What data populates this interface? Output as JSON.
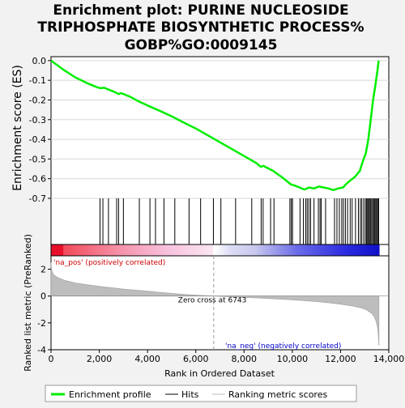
{
  "chart_data": {
    "type": "line",
    "title_lines": [
      "Enrichment plot: PURINE NUCLEOSIDE",
      "TRIPHOSPHATE BIOSYNTHETIC PROCESS%",
      "GOBP%GO:0009145"
    ],
    "xlabel": "Rank in Ordered Dataset",
    "es_panel": {
      "ylabel": "Enrichment score (ES)",
      "ylim": [
        -0.7,
        0.02
      ],
      "yticks": [
        0.0,
        -0.1,
        -0.2,
        -0.3,
        -0.4,
        -0.5,
        -0.6,
        -0.7
      ],
      "ytick_labels": [
        "0.0",
        "-0.1",
        "-0.2",
        "-0.3",
        "-0.4",
        "-0.5",
        "-0.6",
        "-0.7"
      ],
      "series_name": "Enrichment profile",
      "color": "#00ee00",
      "points": [
        [
          0,
          0.0
        ],
        [
          500,
          -0.045
        ],
        [
          1000,
          -0.085
        ],
        [
          1500,
          -0.115
        ],
        [
          1900,
          -0.135
        ],
        [
          2050,
          -0.14
        ],
        [
          2200,
          -0.138
        ],
        [
          2400,
          -0.148
        ],
        [
          2650,
          -0.16
        ],
        [
          2800,
          -0.17
        ],
        [
          2900,
          -0.165
        ],
        [
          3050,
          -0.172
        ],
        [
          3300,
          -0.185
        ],
        [
          3600,
          -0.205
        ],
        [
          4000,
          -0.228
        ],
        [
          4500,
          -0.255
        ],
        [
          5000,
          -0.283
        ],
        [
          5500,
          -0.315
        ],
        [
          6000,
          -0.345
        ],
        [
          6500,
          -0.38
        ],
        [
          7000,
          -0.415
        ],
        [
          7500,
          -0.45
        ],
        [
          8000,
          -0.485
        ],
        [
          8500,
          -0.52
        ],
        [
          8700,
          -0.54
        ],
        [
          8800,
          -0.535
        ],
        [
          9200,
          -0.56
        ],
        [
          9600,
          -0.595
        ],
        [
          9950,
          -0.63
        ],
        [
          10100,
          -0.635
        ],
        [
          10300,
          -0.645
        ],
        [
          10500,
          -0.655
        ],
        [
          10700,
          -0.645
        ],
        [
          10900,
          -0.65
        ],
        [
          11100,
          -0.64
        ],
        [
          11300,
          -0.645
        ],
        [
          11500,
          -0.65
        ],
        [
          11700,
          -0.658
        ],
        [
          11900,
          -0.65
        ],
        [
          12100,
          -0.645
        ],
        [
          12250,
          -0.625
        ],
        [
          12400,
          -0.61
        ],
        [
          12600,
          -0.59
        ],
        [
          12800,
          -0.56
        ],
        [
          12900,
          -0.52
        ],
        [
          13050,
          -0.47
        ],
        [
          13150,
          -0.4
        ],
        [
          13250,
          -0.3
        ],
        [
          13350,
          -0.2
        ],
        [
          13450,
          -0.12
        ],
        [
          13530,
          -0.05
        ],
        [
          13580,
          0.0
        ]
      ]
    },
    "hits": {
      "series_name": "Hits",
      "positions": [
        2030,
        2150,
        2380,
        2720,
        2800,
        3000,
        3660,
        4100,
        4330,
        4680,
        5130,
        5720,
        6200,
        6730,
        7040,
        7650,
        8320,
        8710,
        8790,
        9100,
        9240,
        9900,
        9960,
        10010,
        10320,
        10460,
        10560,
        10620,
        10690,
        10760,
        10900,
        11080,
        11150,
        11200,
        11380,
        11750,
        11850,
        11950,
        12050,
        12120,
        12200,
        12290,
        12400,
        12480,
        12620,
        12740,
        12820,
        12880,
        12960,
        13030,
        13080,
        13120,
        13160,
        13200,
        13240,
        13290,
        13330,
        13380,
        13420,
        13460,
        13500,
        13540,
        13580
      ]
    },
    "heatmap": {
      "label_pos": "'na_pos' (positively correlated)",
      "label_neg": "'na_neg' (negatively correlated)",
      "label_pos_color": "#cc0000",
      "label_neg_color": "#0000cc"
    },
    "metric_panel": {
      "ylabel": "Ranked list metric (PreRanked)",
      "ylim": [
        -4,
        3
      ],
      "yticks": [
        2,
        0,
        -2,
        -4
      ],
      "ytick_labels": [
        "2",
        "0",
        "-2",
        "-4"
      ],
      "series_name": "Ranking metric scores",
      "zero_cross_label": "Zero cross at 6743",
      "zero_cross": 6743,
      "points": [
        [
          0,
          2.5
        ],
        [
          30,
          1.9
        ],
        [
          100,
          1.6
        ],
        [
          300,
          1.35
        ],
        [
          600,
          1.15
        ],
        [
          1000,
          0.98
        ],
        [
          1500,
          0.84
        ],
        [
          2000,
          0.72
        ],
        [
          2500,
          0.62
        ],
        [
          3000,
          0.52
        ],
        [
          3500,
          0.44
        ],
        [
          4000,
          0.36
        ],
        [
          4500,
          0.28
        ],
        [
          5000,
          0.2
        ],
        [
          5500,
          0.13
        ],
        [
          6000,
          0.07
        ],
        [
          6743,
          0.0
        ],
        [
          7500,
          -0.06
        ],
        [
          8000,
          -0.1
        ],
        [
          8500,
          -0.14
        ],
        [
          9000,
          -0.18
        ],
        [
          9500,
          -0.23
        ],
        [
          10000,
          -0.28
        ],
        [
          10500,
          -0.34
        ],
        [
          11000,
          -0.41
        ],
        [
          11500,
          -0.5
        ],
        [
          12000,
          -0.6
        ],
        [
          12500,
          -0.74
        ],
        [
          12900,
          -0.9
        ],
        [
          13100,
          -1.05
        ],
        [
          13300,
          -1.3
        ],
        [
          13400,
          -1.55
        ],
        [
          13480,
          -1.9
        ],
        [
          13540,
          -2.4
        ],
        [
          13570,
          -3.0
        ],
        [
          13590,
          -3.7
        ]
      ]
    },
    "x_axis": {
      "xlim": [
        0,
        14000
      ],
      "ticks": [
        0,
        2000,
        4000,
        6000,
        8000,
        10000,
        12000,
        14000
      ],
      "tick_labels": [
        "0",
        "2,000",
        "4,000",
        "6,000",
        "8,000",
        "10,000",
        "12,000",
        "14,000"
      ],
      "n_genes": 13600
    },
    "legend": {
      "placement": "bottom",
      "entries": [
        "Enrichment profile",
        "Hits",
        "Ranking metric scores"
      ]
    }
  }
}
